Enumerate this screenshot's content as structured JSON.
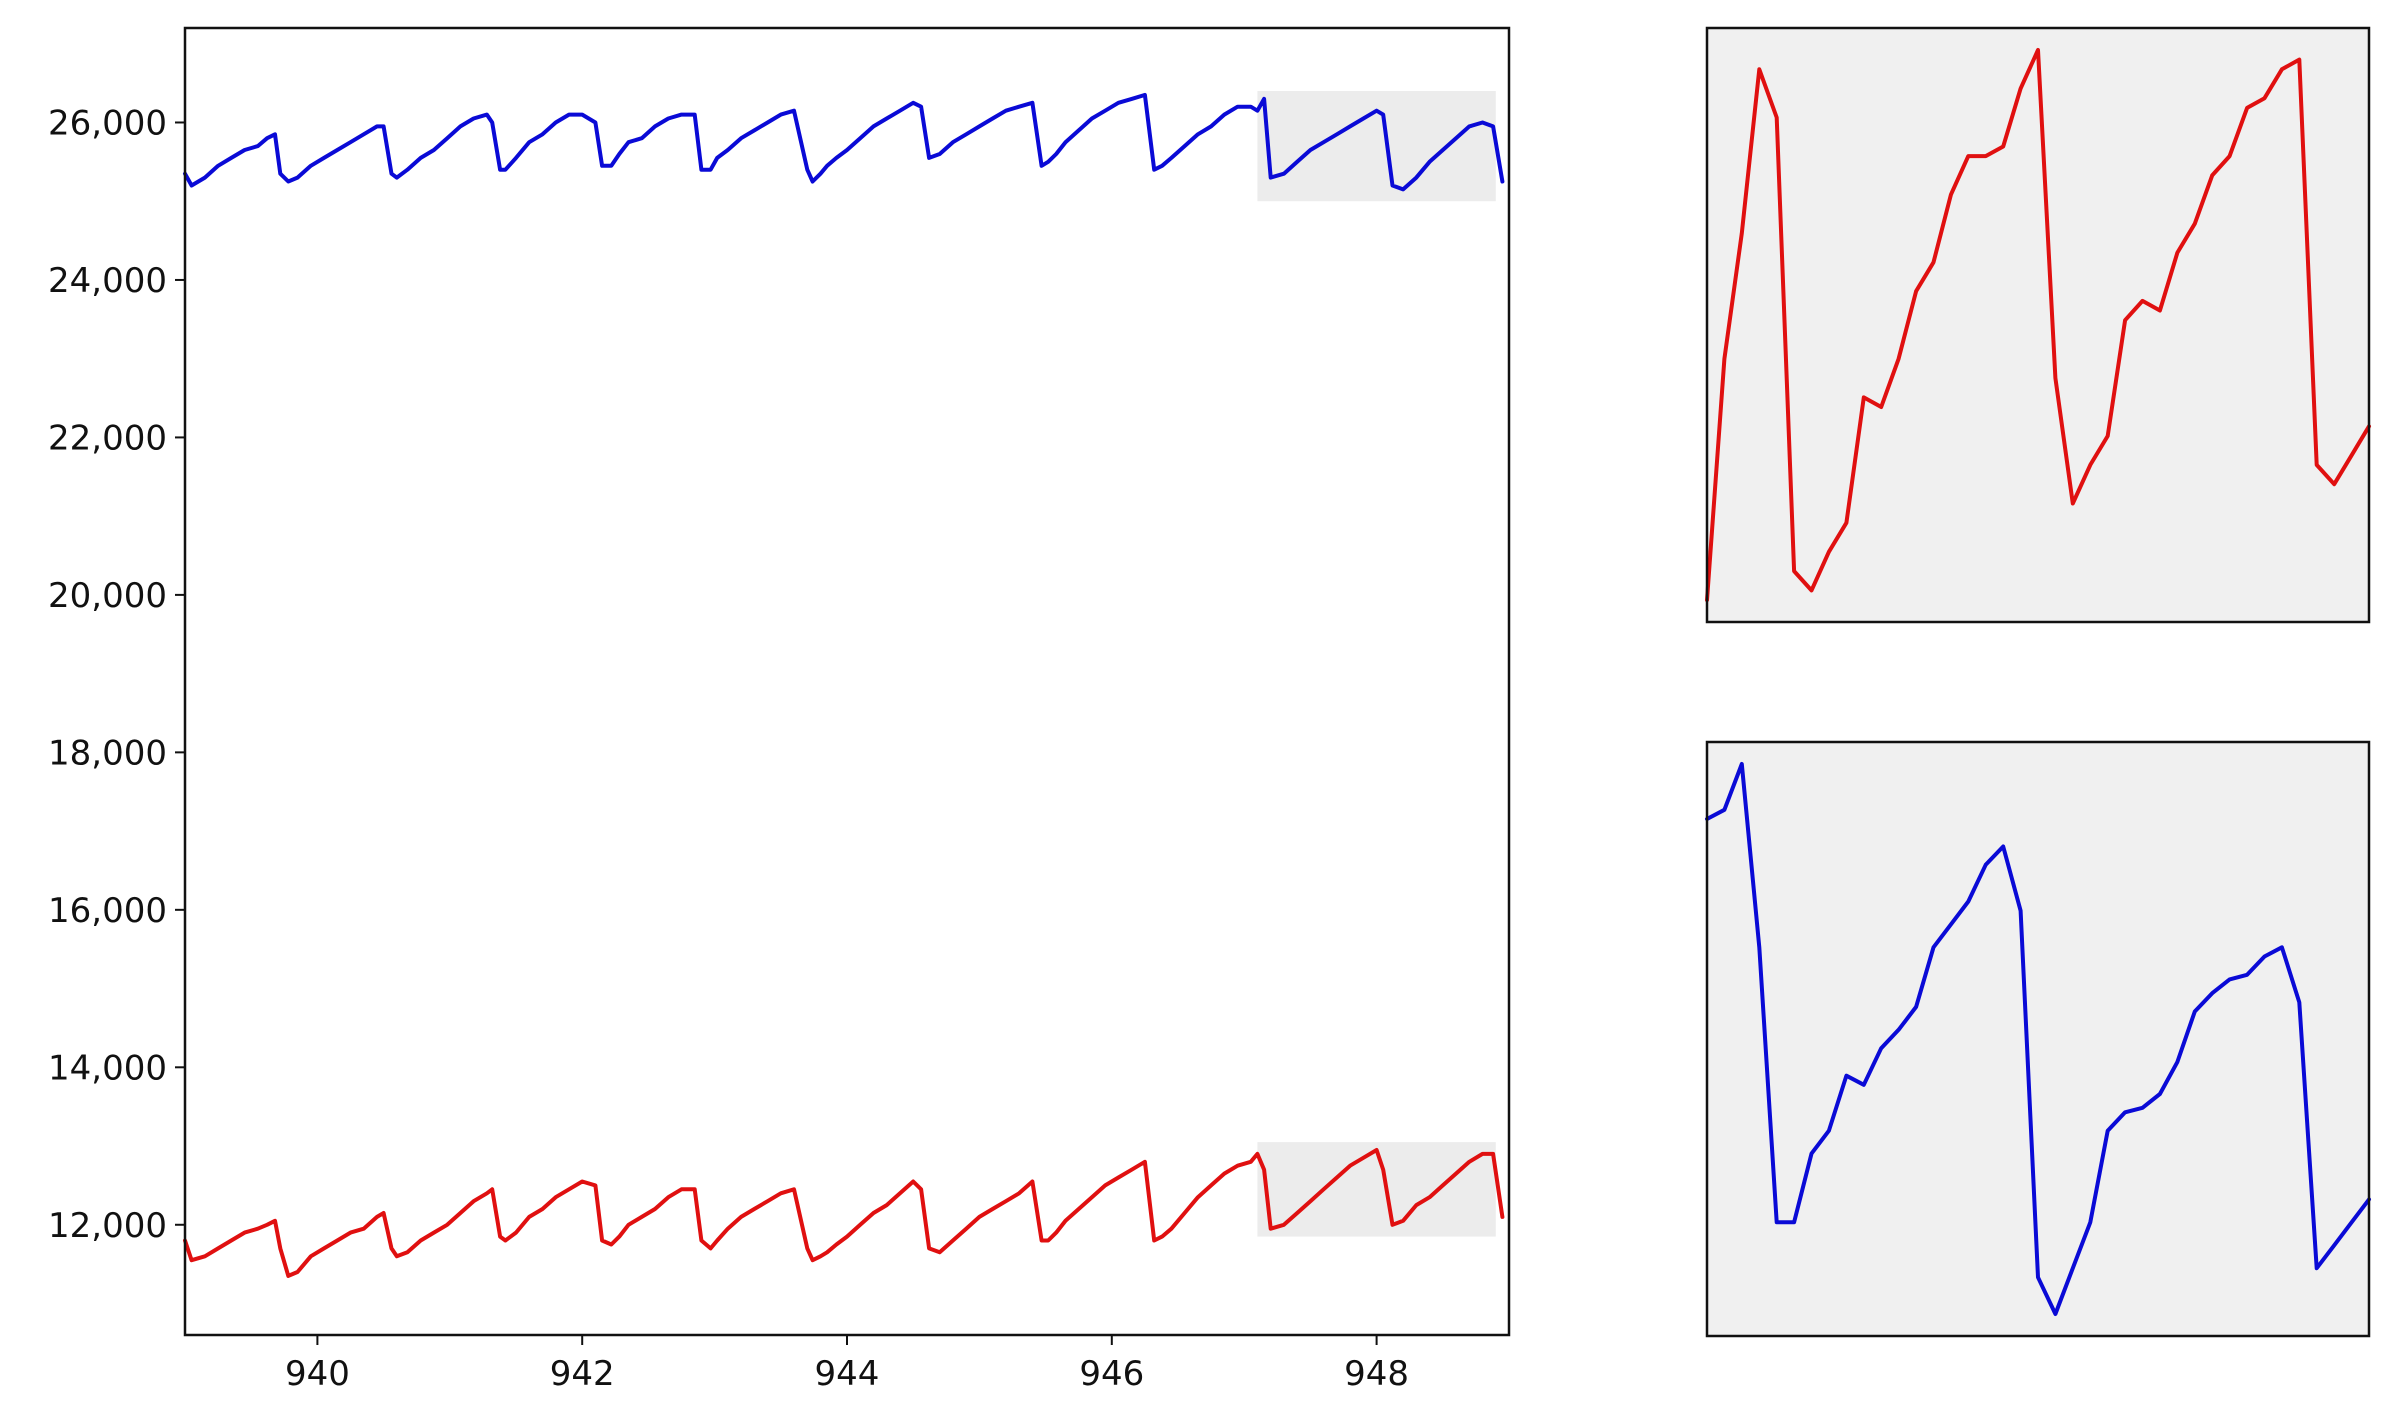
{
  "chart_data": [
    {
      "type": "line",
      "title": "",
      "xlabel": "",
      "ylabel": "",
      "xlim": [
        939,
        949
      ],
      "ylim": [
        10600,
        27200
      ],
      "x_ticks": [
        940,
        942,
        944,
        946,
        948
      ],
      "x_tick_labels": [
        "940",
        "942",
        "944",
        "946",
        "948"
      ],
      "y_ticks": [
        12000,
        14000,
        16000,
        18000,
        20000,
        22000,
        24000,
        26000
      ],
      "y_tick_labels": [
        "12,000",
        "14,000",
        "16,000",
        "18,000",
        "20,000",
        "22,000",
        "24,000",
        "26,000"
      ],
      "grid": false,
      "highlight_regions": [
        {
          "series": "blue",
          "x": [
            947.1,
            948.9
          ],
          "y": [
            25000,
            26400
          ]
        },
        {
          "series": "red",
          "x": [
            947.1,
            948.9
          ],
          "y": [
            11850,
            13050
          ]
        }
      ],
      "series": [
        {
          "color": "#0a0ad6",
          "x": [
            939.0,
            939.05,
            939.15,
            939.25,
            939.35,
            939.45,
            939.55,
            939.62,
            939.68,
            939.72,
            939.78,
            939.85,
            939.95,
            940.05,
            940.15,
            940.25,
            940.35,
            940.45,
            940.5,
            940.56,
            940.6,
            940.68,
            940.78,
            940.88,
            940.98,
            941.08,
            941.18,
            941.28,
            941.32,
            941.38,
            941.42,
            941.5,
            941.6,
            941.7,
            941.8,
            941.9,
            942.0,
            942.1,
            942.15,
            942.22,
            942.28,
            942.35,
            942.45,
            942.55,
            942.65,
            942.75,
            942.85,
            942.9,
            942.97,
            943.02,
            943.1,
            943.2,
            943.3,
            943.4,
            943.5,
            943.6,
            943.7,
            943.74,
            943.8,
            943.85,
            943.92,
            944.0,
            944.1,
            944.2,
            944.3,
            944.4,
            944.5,
            944.56,
            944.62,
            944.7,
            944.8,
            944.9,
            945.0,
            945.1,
            945.2,
            945.3,
            945.4,
            945.47,
            945.52,
            945.58,
            945.65,
            945.75,
            945.85,
            945.95,
            946.05,
            946.15,
            946.25,
            946.32,
            946.38,
            946.45,
            946.55,
            946.65,
            946.75,
            946.85,
            946.95,
            947.05,
            947.1,
            947.15,
            947.2,
            947.3,
            947.4,
            947.5,
            947.6,
            947.7,
            947.8,
            947.9,
            948.0,
            948.05,
            948.12,
            948.2,
            948.3,
            948.4,
            948.5,
            948.6,
            948.7,
            948.8,
            948.88,
            948.95
          ],
          "values": [
            25350,
            25200,
            25300,
            25450,
            25550,
            25650,
            25700,
            25800,
            25850,
            25350,
            25250,
            25300,
            25450,
            25550,
            25650,
            25750,
            25850,
            25950,
            25950,
            25350,
            25300,
            25400,
            25550,
            25650,
            25800,
            25950,
            26050,
            26100,
            26000,
            25400,
            25400,
            25550,
            25750,
            25850,
            26000,
            26100,
            26100,
            26000,
            25450,
            25450,
            25600,
            25750,
            25800,
            25950,
            26050,
            26100,
            26100,
            25400,
            25400,
            25550,
            25650,
            25800,
            25900,
            26000,
            26100,
            26150,
            25400,
            25250,
            25350,
            25450,
            25550,
            25650,
            25800,
            25950,
            26050,
            26150,
            26250,
            26200,
            25550,
            25600,
            25750,
            25850,
            25950,
            26050,
            26150,
            26200,
            26250,
            25450,
            25500,
            25600,
            25750,
            25900,
            26050,
            26150,
            26250,
            26300,
            26350,
            25400,
            25450,
            25550,
            25700,
            25850,
            25950,
            26100,
            26200,
            26200,
            26150,
            26300,
            25300,
            25350,
            25500,
            25650,
            25750,
            25850,
            25950,
            26050,
            26150,
            26100,
            25200,
            25150,
            25300,
            25500,
            25650,
            25800,
            25950,
            26000,
            25950,
            25250
          ]
        },
        {
          "color": "#e01010",
          "x": [
            939.0,
            939.05,
            939.15,
            939.25,
            939.35,
            939.45,
            939.55,
            939.62,
            939.68,
            939.72,
            939.78,
            939.85,
            939.95,
            940.05,
            940.15,
            940.25,
            940.35,
            940.45,
            940.5,
            940.56,
            940.6,
            940.68,
            940.78,
            940.88,
            940.98,
            941.08,
            941.18,
            941.28,
            941.32,
            941.38,
            941.42,
            941.5,
            941.6,
            941.7,
            941.8,
            941.9,
            942.0,
            942.1,
            942.15,
            942.22,
            942.28,
            942.35,
            942.45,
            942.55,
            942.65,
            942.75,
            942.85,
            942.9,
            942.97,
            943.02,
            943.1,
            943.2,
            943.3,
            943.4,
            943.5,
            943.6,
            943.7,
            943.74,
            943.8,
            943.85,
            943.92,
            944.0,
            944.1,
            944.2,
            944.3,
            944.4,
            944.5,
            944.56,
            944.62,
            944.7,
            944.8,
            944.9,
            945.0,
            945.1,
            945.2,
            945.3,
            945.4,
            945.47,
            945.52,
            945.58,
            945.65,
            945.75,
            945.85,
            945.95,
            946.05,
            946.15,
            946.25,
            946.32,
            946.38,
            946.45,
            946.55,
            946.65,
            946.75,
            946.85,
            946.95,
            947.05,
            947.1,
            947.15,
            947.2,
            947.3,
            947.4,
            947.5,
            947.6,
            947.7,
            947.8,
            947.9,
            948.0,
            948.05,
            948.12,
            948.2,
            948.3,
            948.4,
            948.5,
            948.6,
            948.7,
            948.8,
            948.88,
            948.95
          ],
          "values": [
            11800,
            11550,
            11600,
            11700,
            11800,
            11900,
            11950,
            12000,
            12050,
            11700,
            11350,
            11400,
            11600,
            11700,
            11800,
            11900,
            11950,
            12100,
            12150,
            11700,
            11600,
            11650,
            11800,
            11900,
            12000,
            12150,
            12300,
            12400,
            12450,
            11850,
            11800,
            11900,
            12100,
            12200,
            12350,
            12450,
            12550,
            12500,
            11800,
            11750,
            11850,
            12000,
            12100,
            12200,
            12350,
            12450,
            12450,
            11800,
            11700,
            11800,
            11950,
            12100,
            12200,
            12300,
            12400,
            12450,
            11700,
            11550,
            11600,
            11650,
            11750,
            11850,
            12000,
            12150,
            12250,
            12400,
            12550,
            12450,
            11700,
            11650,
            11800,
            11950,
            12100,
            12200,
            12300,
            12400,
            12550,
            11800,
            11800,
            11900,
            12050,
            12200,
            12350,
            12500,
            12600,
            12700,
            12800,
            11800,
            11850,
            11950,
            12150,
            12350,
            12500,
            12650,
            12750,
            12800,
            12900,
            12700,
            11950,
            12000,
            12150,
            12300,
            12450,
            12600,
            12750,
            12850,
            12950,
            12700,
            12000,
            12050,
            12250,
            12350,
            12500,
            12650,
            12800,
            12900,
            12900,
            12100
          ]
        }
      ]
    },
    {
      "type": "line",
      "title": "",
      "inset_of": "red",
      "axis_labels_shown": false,
      "background": "#f0f0f0",
      "series": [
        {
          "color": "#e01010",
          "x": [
            0,
            1,
            2,
            3,
            4,
            5,
            6,
            7,
            8,
            9,
            10,
            11,
            12,
            13,
            14,
            15,
            16,
            17,
            18,
            19,
            20,
            21,
            22,
            23,
            24,
            25,
            26,
            27,
            28,
            29,
            30,
            31,
            32,
            33,
            34,
            35,
            36,
            37,
            38
          ],
          "values": [
            11950,
            12200,
            12330,
            12500,
            12450,
            11980,
            11960,
            12000,
            12030,
            12160,
            12150,
            12200,
            12270,
            12300,
            12370,
            12410,
            12410,
            12420,
            12480,
            12520,
            12180,
            12050,
            12090,
            12120,
            12240,
            12260,
            12250,
            12310,
            12340,
            12390,
            12410,
            12460,
            12470,
            12500,
            12510,
            12090,
            12070,
            12100,
            12130
          ]
        }
      ]
    },
    {
      "type": "line",
      "title": "",
      "inset_of": "blue",
      "axis_labels_shown": false,
      "background": "#f0f0f0",
      "series": [
        {
          "color": "#0a0ad6",
          "x": [
            0,
            1,
            2,
            3,
            4,
            5,
            6,
            7,
            8,
            9,
            10,
            11,
            12,
            13,
            14,
            15,
            16,
            17,
            18,
            19,
            20,
            21,
            22,
            23,
            24,
            25,
            26,
            27,
            28,
            29,
            30,
            31,
            32,
            33,
            34,
            35,
            36,
            37,
            38
          ],
          "values": [
            26180,
            26200,
            26300,
            25900,
            25300,
            25300,
            25450,
            25500,
            25620,
            25600,
            25680,
            25720,
            25770,
            25900,
            25950,
            26000,
            26080,
            26120,
            25980,
            25180,
            25100,
            25200,
            25300,
            25500,
            25540,
            25550,
            25580,
            25650,
            25760,
            25800,
            25830,
            25840,
            25880,
            25900,
            25780,
            25200,
            25250,
            25300,
            25350
          ]
        }
      ]
    }
  ]
}
